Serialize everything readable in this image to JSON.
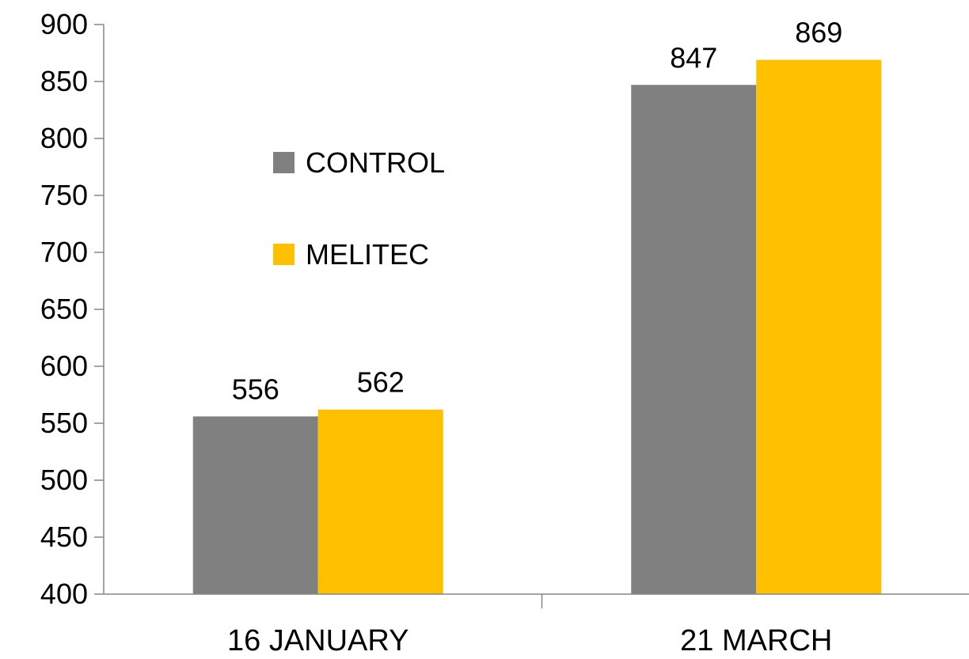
{
  "chart_data": {
    "type": "bar",
    "categories": [
      "16 JANUARY",
      "21 MARCH"
    ],
    "series": [
      {
        "name": "CONTROL",
        "values": [
          556,
          847
        ],
        "color": "#808080"
      },
      {
        "name": "MELITEC",
        "values": [
          562,
          869
        ],
        "color": "#FFC000"
      }
    ],
    "ylim": [
      400,
      900
    ],
    "yticks": [
      400,
      450,
      500,
      550,
      600,
      650,
      700,
      750,
      800,
      850,
      900
    ],
    "grid": false,
    "legend": {
      "placement": "inside-top-left"
    },
    "title": "",
    "xlabel": "",
    "ylabel": ""
  }
}
